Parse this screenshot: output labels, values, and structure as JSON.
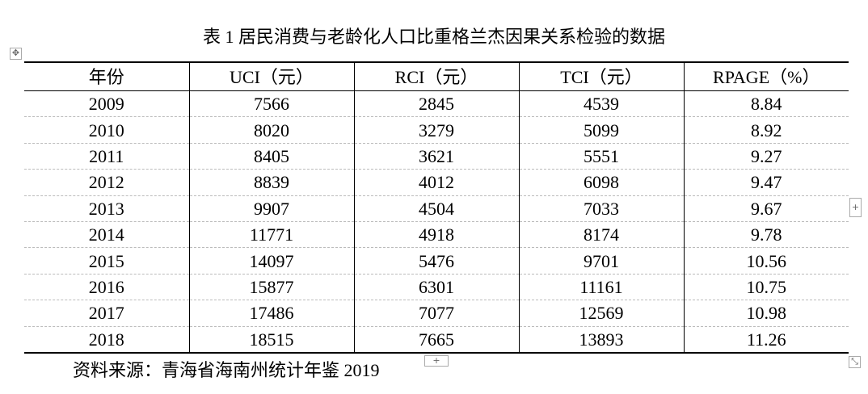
{
  "title": "表 1  居民消费与老龄化人口比重格兰杰因果关系检验的数据",
  "table": {
    "header": [
      "年份",
      "UCI（元）",
      "RCI（元）",
      "TCI（元）",
      "RPAGE（%）"
    ],
    "rows": [
      [
        2009,
        7566,
        2845,
        4539,
        8.84
      ],
      [
        2010,
        8020,
        3279,
        5099,
        8.92
      ],
      [
        2011,
        8405,
        3621,
        5551,
        9.27
      ],
      [
        2012,
        8839,
        4012,
        6098,
        9.47
      ],
      [
        2013,
        9907,
        4504,
        7033,
        9.67
      ],
      [
        2014,
        11771,
        4918,
        8174,
        9.78
      ],
      [
        2015,
        14097,
        5476,
        9701,
        10.56
      ],
      [
        2016,
        15877,
        6301,
        11161,
        10.75
      ],
      [
        2017,
        17486,
        7077,
        12569,
        10.98
      ],
      [
        2018,
        18515,
        7665,
        13893,
        11.26
      ]
    ]
  },
  "source": "资料来源：青海省海南州统计年鉴 2019"
}
